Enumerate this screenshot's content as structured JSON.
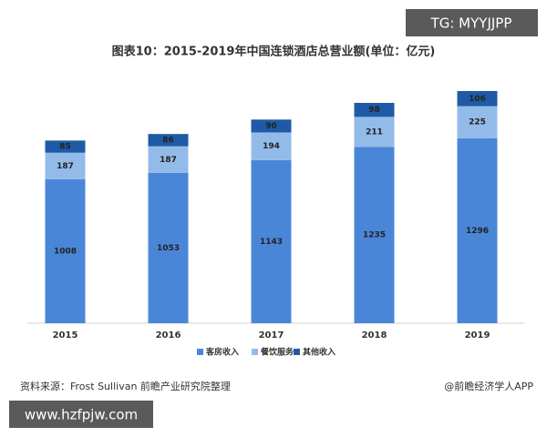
{
  "chart_data": {
    "type": "stacked_bar",
    "title": "图表10：2015-2019年中国连锁酒店总营业额(单位：亿元)",
    "categories": [
      "2015",
      "2016",
      "2017",
      "2018",
      "2019"
    ],
    "series": [
      {
        "name": "客房收入",
        "color": "#4a86d8",
        "values": [
          1008,
          1053,
          1143,
          1235,
          1296
        ]
      },
      {
        "name": "餐饮服务",
        "color": "#93bbe9",
        "values": [
          187,
          187,
          194,
          211,
          225
        ]
      },
      {
        "name": "其他收入",
        "color": "#1f5aa6",
        "values": [
          85,
          86,
          90,
          98,
          106
        ]
      }
    ],
    "legend": "bottom",
    "source": "资料来源：Frost Sullivan  前瞻产业研究院整理",
    "credit": "@前瞻经济学人APP"
  },
  "overlays": {
    "top_right": "TG: MYYJJPP",
    "bottom_left": "www.hzfpjw.com"
  }
}
